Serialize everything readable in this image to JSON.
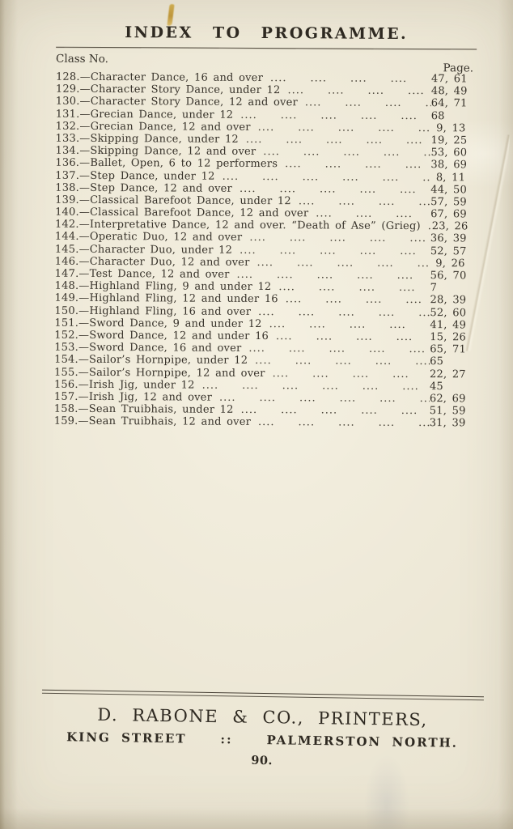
{
  "page": {
    "title": "INDEX TO PROGRAMME.",
    "col_left_header": "Class No.",
    "col_right_header": "Page.",
    "colors": {
      "paper": "#e8e2cf",
      "ink": "#37322a"
    },
    "footer": {
      "printer": "D. RABONE & CO., PRINTERS,",
      "address_left": "KING STREET",
      "address_sep": "::",
      "address_right": "PALMERSTON NORTH.",
      "page_number": "90."
    }
  },
  "index": {
    "rows": [
      {
        "label": "128.—Character Dance, 16 and over",
        "pages": "47, 61"
      },
      {
        "label": "129.—Character Story Dance, under 12",
        "pages": "48, 49"
      },
      {
        "label": "130.—Character Story Dance, 12 and over",
        "pages": "64, 71"
      },
      {
        "label": "131.—Grecian Dance, under 12",
        "pages": "68"
      },
      {
        "label": "132.—Grecian Dance, 12 and over",
        "pages": " 9, 13"
      },
      {
        "label": "133.—Skipping Dance, under 12",
        "pages": "19, 25"
      },
      {
        "label": "134.—Skipping Dance, 12 and over",
        "pages": "53, 60"
      },
      {
        "label": "136.—Ballet, Open, 6 to 12 performers",
        "pages": "38, 69"
      },
      {
        "label": "137.—Step Dance, under 12",
        "pages": " 8, 11"
      },
      {
        "label": "138.—Step Dance, 12 and over",
        "pages": "44, 50"
      },
      {
        "label": "139.—Classical Barefoot Dance, under 12",
        "pages": "57, 59"
      },
      {
        "label": "140.—Classical Barefoot Dance, 12 and over",
        "pages": "67, 69"
      },
      {
        "label": "142.—Interpretative Dance, 12 and over. “Death of Ase” (Grieg)",
        "pages": "23, 26"
      },
      {
        "label": "144.—Operatic Duo, 12 and over",
        "pages": "36, 39"
      },
      {
        "label": "145.—Character Duo, under 12",
        "pages": "52, 57"
      },
      {
        "label": "146.—Character Duo, 12 and over",
        "pages": " 9, 26"
      },
      {
        "label": "147.—Test Dance, 12 and over",
        "pages": "56, 70"
      },
      {
        "label": "148.—Highland Fling, 9 and under 12",
        "pages": "7"
      },
      {
        "label": "149.—Highland Fling, 12 and under 16",
        "pages": "28, 39"
      },
      {
        "label": "150.—Highland Fling, 16 and over",
        "pages": "52, 60"
      },
      {
        "label": "151.—Sword Dance, 9 and under 12",
        "pages": "41, 49"
      },
      {
        "label": "152.—Sword Dance, 12 and under 16",
        "pages": "15, 26"
      },
      {
        "label": "153.—Sword Dance, 16 and over",
        "pages": "65, 71"
      },
      {
        "label": "154.—Sailor’s Hornpipe, under 12",
        "pages": "65"
      },
      {
        "label": "155.—Sailor’s Hornpipe, 12 and over",
        "pages": "22, 27"
      },
      {
        "label": "156.—Irish Jig, under 12",
        "pages": "45"
      },
      {
        "label": "157.—Irish Jig, 12 and over",
        "pages": "62, 69"
      },
      {
        "label": "158.—Sean Truibhais, under 12",
        "pages": "51, 59"
      },
      {
        "label": "159.—Sean Truibhais, 12 and over",
        "pages": "31, 39"
      }
    ]
  }
}
